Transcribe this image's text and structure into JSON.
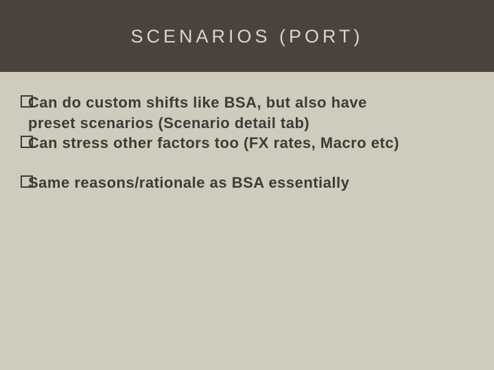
{
  "colors": {
    "header_bg": "#4a423d",
    "header_text": "#d9d6c9",
    "body_bg": "#cfccbd",
    "bullet_text": "#3f3a36"
  },
  "header": {
    "title": "SCENARIOS (PORT)"
  },
  "bullets": {
    "group1": [
      {
        "first": "Can do custom shifts like BSA, but also have",
        "cont": "preset scenarios (Scenario detail tab)"
      },
      {
        "first": "Can stress other factors too (FX rates, Macro etc)"
      }
    ],
    "group2": [
      {
        "first": "Same reasons/rationale as BSA essentially"
      }
    ]
  },
  "typography": {
    "title_fontsize": 27,
    "title_letterspacing": 5,
    "bullet_fontsize": 22,
    "bullet_fontweight": 700
  }
}
